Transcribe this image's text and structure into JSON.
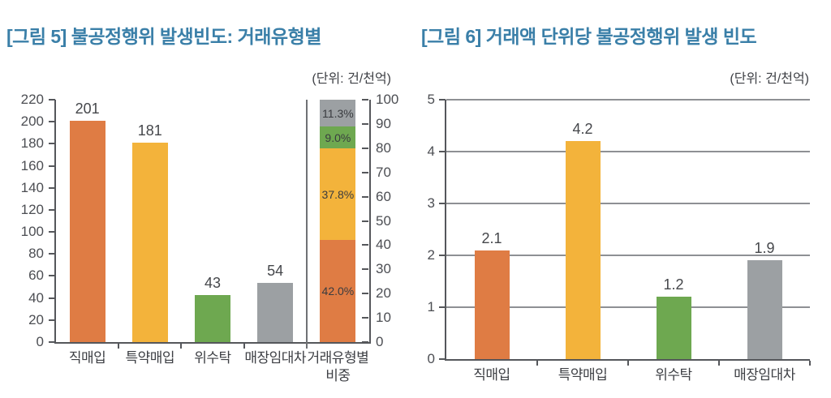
{
  "colors": {
    "title": "#3a7fa8",
    "orange": "#df7c44",
    "yellow": "#f3b33b",
    "green": "#6ea850",
    "gray": "#9ca0a3",
    "axis": "#55575b",
    "gridline": "#8e9094",
    "text": "#3e4045"
  },
  "chart_data": [
    {
      "type": "bar",
      "title": "[그림 5] 불공정행위 발생빈도: 거래유형별",
      "unit_label": "(단위: 건/천억)",
      "legend": "none",
      "grid": false,
      "left_axis": {
        "min": 0,
        "max": 220,
        "tick_step": 20,
        "ticks": [
          0,
          20,
          40,
          60,
          80,
          100,
          120,
          140,
          160,
          180,
          200,
          220
        ]
      },
      "right_axis": {
        "min": 0,
        "max": 100,
        "tick_step": 10,
        "ticks": [
          0,
          10,
          20,
          30,
          40,
          50,
          60,
          70,
          80,
          90,
          100
        ]
      },
      "bars": [
        {
          "category": "직매입",
          "value": 201,
          "label": "201",
          "color": "#df7c44"
        },
        {
          "category": "특약매입",
          "value": 181,
          "label": "181",
          "color": "#f3b33b"
        },
        {
          "category": "위수탁",
          "value": 43,
          "label": "43",
          "color": "#6ea850"
        },
        {
          "category": "매장임대차",
          "value": 54,
          "label": "54",
          "color": "#9ca0a3"
        }
      ],
      "stacked_bar": {
        "category": "거래유형별 비중",
        "category_lines": [
          "거래유형별",
          "비중"
        ],
        "axis": "right",
        "segments_bottom_to_top": [
          {
            "label": "42.0%",
            "value": 42.0,
            "color": "#df7c44"
          },
          {
            "label": "37.8%",
            "value": 37.8,
            "color": "#f3b33b"
          },
          {
            "label": "9.0%",
            "value": 9.0,
            "color": "#6ea850"
          },
          {
            "label": "11.3%",
            "value": 11.3,
            "color": "#9ca0a3"
          }
        ]
      }
    },
    {
      "type": "bar",
      "title": "[그림 6] 거래액 단위당 불공정행위 발생 빈도",
      "unit_label": "(단위: 건/천억)",
      "legend": "none",
      "grid": true,
      "y_axis": {
        "min": 0,
        "max": 5,
        "tick_step": 1,
        "ticks": [
          0,
          1,
          2,
          3,
          4,
          5
        ]
      },
      "bars": [
        {
          "category": "직매입",
          "value": 2.1,
          "label": "2.1",
          "color": "#df7c44"
        },
        {
          "category": "특약매입",
          "value": 4.2,
          "label": "4.2",
          "color": "#f3b33b"
        },
        {
          "category": "위수탁",
          "value": 1.2,
          "label": "1.2",
          "color": "#6ea850"
        },
        {
          "category": "매장임대차",
          "value": 1.9,
          "label": "1.9",
          "color": "#9ca0a3"
        }
      ]
    }
  ]
}
